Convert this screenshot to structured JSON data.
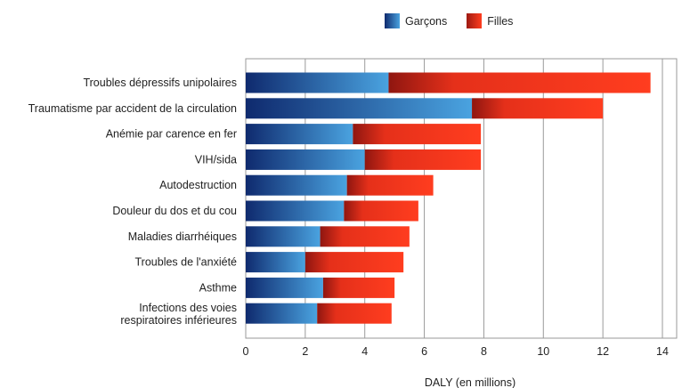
{
  "chart_data": {
    "type": "bar",
    "orientation": "horizontal",
    "stacked": true,
    "categories": [
      "Troubles dépressifs unipolaires",
      "Traumatisme par accident de la circulation",
      "Anémie par carence en fer",
      "VIH/sida",
      "Autodestruction",
      "Douleur du dos et du cou",
      "Maladies diarrhéiques",
      "Troubles de l'anxiété",
      "Asthme",
      "Infections des voies respiratoires inférieures"
    ],
    "series": [
      {
        "name": "Garçons",
        "values": [
          4.8,
          7.6,
          3.6,
          4.0,
          3.4,
          3.3,
          2.5,
          2.0,
          2.6,
          2.4
        ]
      },
      {
        "name": "Filles",
        "values": [
          8.8,
          4.4,
          4.3,
          3.9,
          2.9,
          2.5,
          3.0,
          3.3,
          2.4,
          2.5
        ]
      }
    ],
    "xlabel": "DALY (en millions)",
    "ylabel": "",
    "xlim": [
      0,
      14
    ],
    "xticks": [
      0,
      2,
      4,
      6,
      8,
      10,
      12,
      14
    ],
    "grid": "vertical",
    "legend_position": "top",
    "colors": {
      "Garçons": {
        "dark": "#0f2a6e",
        "light": "#4aa3e0"
      },
      "Filles": {
        "dark": "#9e1a12",
        "light": "#ff3d1f"
      }
    }
  }
}
